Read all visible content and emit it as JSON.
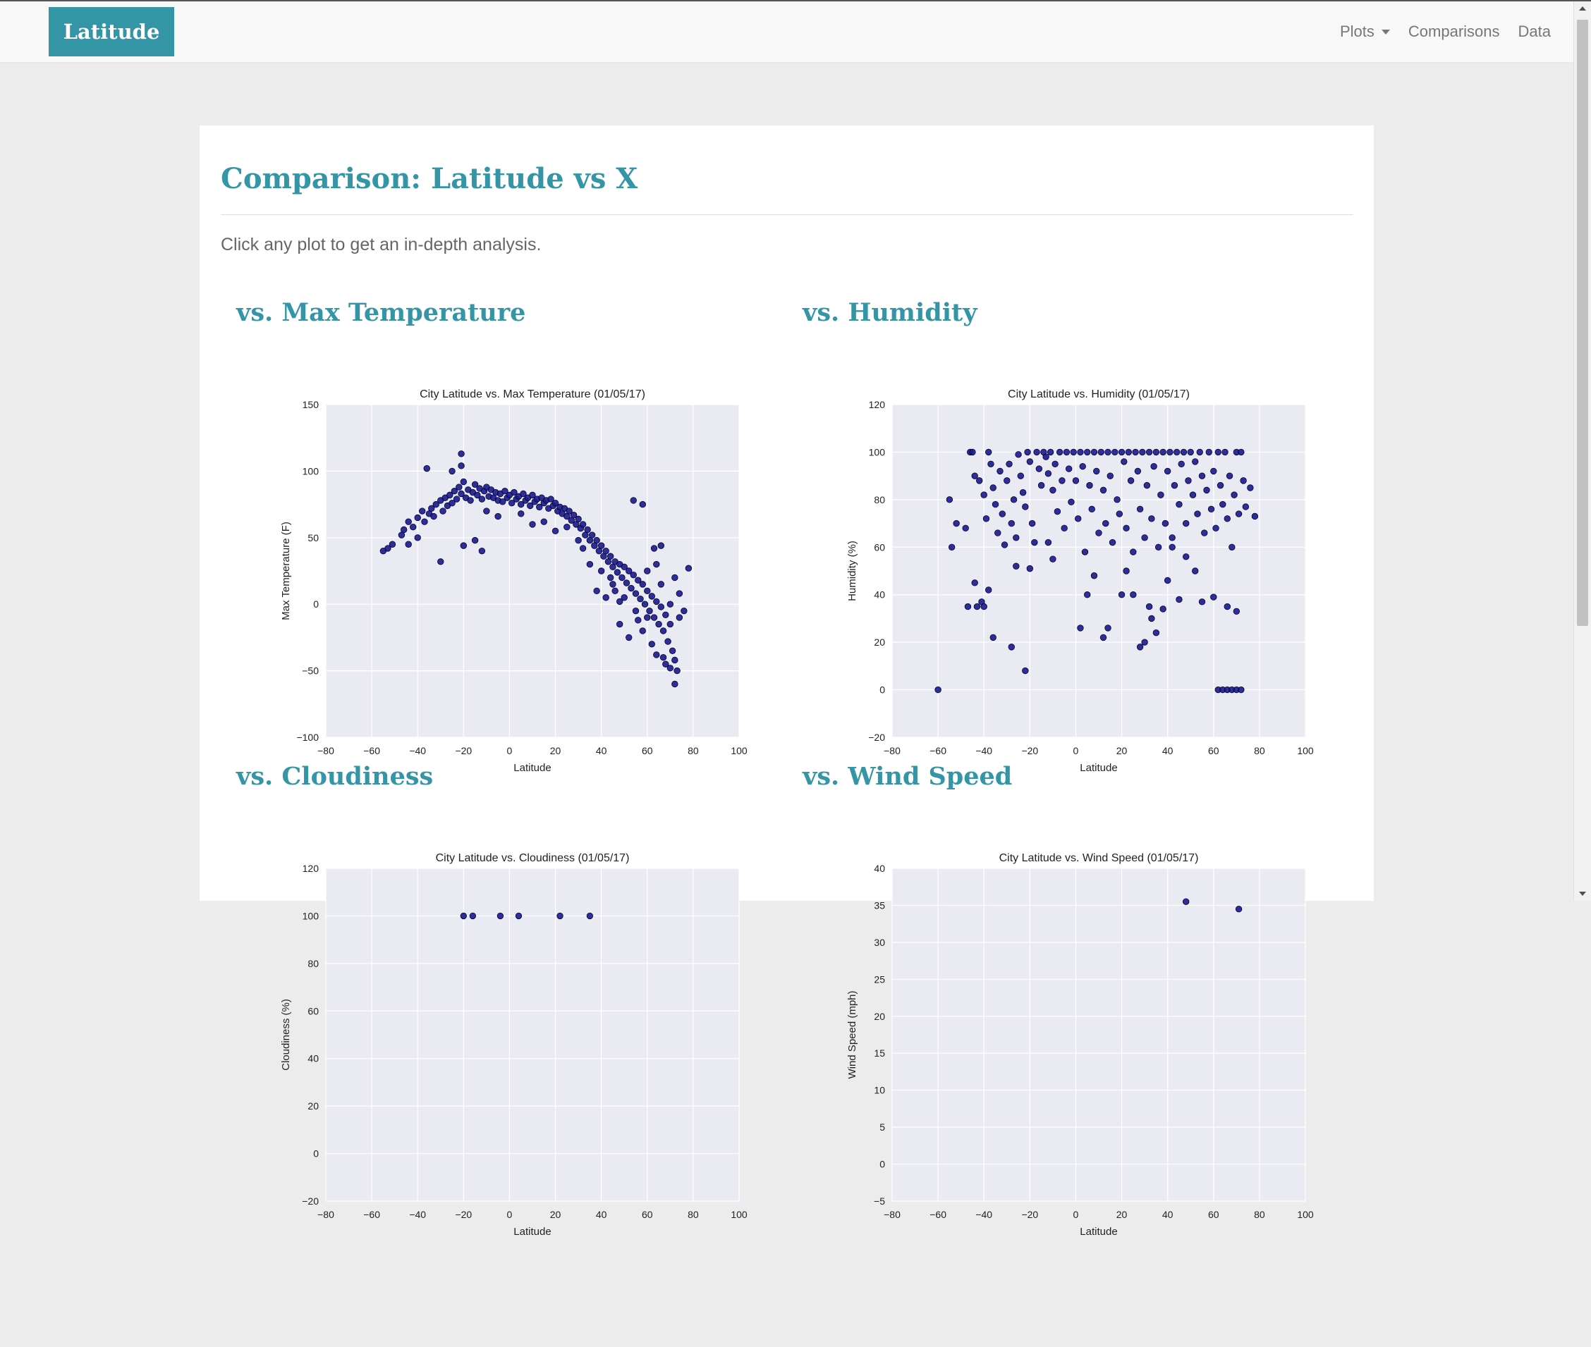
{
  "navbar": {
    "brand": "Latitude",
    "links": [
      {
        "label": "Plots",
        "dropdown": true
      },
      {
        "label": "Comparisons"
      },
      {
        "label": "Data"
      }
    ]
  },
  "page": {
    "title": "Comparison: Latitude vs X",
    "subtitle": "Click any plot to get an in-depth analysis."
  },
  "sections": {
    "temp": "vs. Max Temperature",
    "humidity": "vs. Humidity",
    "cloudiness": "vs. Cloudiness",
    "wind": "vs. Wind Speed"
  },
  "colors": {
    "accent": "#3395a5",
    "plot_bg": "#eaeaf2",
    "grid": "#ffffff",
    "marker": "#1a1a8c",
    "marker_edge": "#000033"
  },
  "chart_data": [
    {
      "id": "temp",
      "type": "scatter",
      "title": "City Latitude vs. Max Temperature (01/05/17)",
      "xlabel": "Latitude",
      "ylabel": "Max Temperature (F)",
      "xlim": [
        -80,
        100
      ],
      "ylim": [
        -100,
        150
      ],
      "xticks": [
        -80,
        -60,
        -40,
        -20,
        0,
        20,
        40,
        60,
        80,
        100
      ],
      "yticks": [
        -100,
        -50,
        0,
        50,
        100,
        150
      ],
      "points": [
        [
          -55,
          40
        ],
        [
          -53,
          42
        ],
        [
          -51,
          45
        ],
        [
          -47,
          52
        ],
        [
          -46,
          56
        ],
        [
          -44,
          62
        ],
        [
          -42,
          58
        ],
        [
          -40,
          65
        ],
        [
          -38,
          70
        ],
        [
          -37,
          62
        ],
        [
          -35,
          68
        ],
        [
          -34,
          72
        ],
        [
          -33,
          66
        ],
        [
          -32,
          75
        ],
        [
          -30,
          78
        ],
        [
          -29,
          70
        ],
        [
          -28,
          80
        ],
        [
          -27,
          74
        ],
        [
          -26,
          82
        ],
        [
          -25,
          76
        ],
        [
          -24,
          85
        ],
        [
          -23,
          79
        ],
        [
          -22,
          88
        ],
        [
          -21,
          83
        ],
        [
          -20,
          92
        ],
        [
          -19,
          80
        ],
        [
          -18,
          86
        ],
        [
          -17,
          78
        ],
        [
          -16,
          84
        ],
        [
          -15,
          90
        ],
        [
          -14,
          82
        ],
        [
          -13,
          87
        ],
        [
          -12,
          79
        ],
        [
          -11,
          85
        ],
        [
          -10,
          88
        ],
        [
          -9,
          81
        ],
        [
          -8,
          86
        ],
        [
          -7,
          80
        ],
        [
          -6,
          84
        ],
        [
          -5,
          78
        ],
        [
          -4,
          83
        ],
        [
          -3,
          77
        ],
        [
          -2,
          85
        ],
        [
          -1,
          80
        ],
        [
          0,
          82
        ],
        [
          1,
          76
        ],
        [
          2,
          84
        ],
        [
          3,
          79
        ],
        [
          4,
          81
        ],
        [
          5,
          75
        ],
        [
          6,
          83
        ],
        [
          7,
          78
        ],
        [
          8,
          80
        ],
        [
          9,
          74
        ],
        [
          10,
          82
        ],
        [
          11,
          77
        ],
        [
          12,
          79
        ],
        [
          13,
          73
        ],
        [
          14,
          80
        ],
        [
          15,
          76
        ],
        [
          16,
          78
        ],
        [
          17,
          72
        ],
        [
          18,
          79
        ],
        [
          19,
          74
        ],
        [
          20,
          76
        ],
        [
          21,
          70
        ],
        [
          22,
          73
        ],
        [
          23,
          68
        ],
        [
          24,
          72
        ],
        [
          25,
          66
        ],
        [
          26,
          70
        ],
        [
          27,
          63
        ],
        [
          28,
          67
        ],
        [
          29,
          60
        ],
        [
          30,
          64
        ],
        [
          31,
          57
        ],
        [
          32,
          60
        ],
        [
          33,
          52
        ],
        [
          34,
          56
        ],
        [
          35,
          48
        ],
        [
          36,
          52
        ],
        [
          37,
          44
        ],
        [
          38,
          48
        ],
        [
          39,
          40
        ],
        [
          40,
          44
        ],
        [
          41,
          36
        ],
        [
          42,
          40
        ],
        [
          43,
          32
        ],
        [
          44,
          36
        ],
        [
          45,
          28
        ],
        [
          46,
          32
        ],
        [
          47,
          24
        ],
        [
          48,
          30
        ],
        [
          49,
          20
        ],
        [
          50,
          28
        ],
        [
          51,
          16
        ],
        [
          52,
          25
        ],
        [
          53,
          12
        ],
        [
          54,
          22
        ],
        [
          55,
          8
        ],
        [
          56,
          18
        ],
        [
          57,
          4
        ],
        [
          58,
          15
        ],
        [
          59,
          0
        ],
        [
          60,
          10
        ],
        [
          61,
          -5
        ],
        [
          62,
          6
        ],
        [
          63,
          -10
        ],
        [
          64,
          2
        ],
        [
          65,
          -15
        ],
        [
          66,
          -2
        ],
        [
          67,
          -20
        ],
        [
          68,
          -8
        ],
        [
          69,
          -28
        ],
        [
          70,
          -15
        ],
        [
          71,
          -35
        ],
        [
          72,
          -42
        ],
        [
          73,
          -50
        ],
        [
          72,
          -60
        ],
        [
          70,
          -48
        ],
        [
          67,
          -40
        ],
        [
          -30,
          32
        ],
        [
          -20,
          44
        ],
        [
          -12,
          40
        ],
        [
          -36,
          102
        ],
        [
          -25,
          100
        ],
        [
          -21,
          104
        ],
        [
          -21,
          113
        ],
        [
          54,
          78
        ],
        [
          58,
          75
        ],
        [
          63,
          42
        ],
        [
          66,
          44
        ],
        [
          78,
          27
        ],
        [
          76,
          -5
        ],
        [
          74,
          8
        ],
        [
          48,
          -15
        ],
        [
          52,
          -25
        ],
        [
          42,
          5
        ],
        [
          38,
          10
        ],
        [
          -44,
          45
        ],
        [
          -40,
          50
        ],
        [
          -15,
          48
        ],
        [
          15,
          62
        ],
        [
          20,
          55
        ],
        [
          30,
          48
        ],
        [
          35,
          30
        ],
        [
          40,
          25
        ],
        [
          45,
          15
        ],
        [
          50,
          5
        ],
        [
          55,
          -5
        ],
        [
          60,
          -10
        ],
        [
          62,
          -30
        ],
        [
          64,
          -38
        ],
        [
          68,
          -45
        ],
        [
          -10,
          70
        ],
        [
          -5,
          66
        ],
        [
          5,
          68
        ],
        [
          10,
          60
        ],
        [
          25,
          58
        ],
        [
          32,
          42
        ],
        [
          44,
          20
        ],
        [
          46,
          10
        ],
        [
          48,
          2
        ],
        [
          56,
          -12
        ],
        [
          58,
          -20
        ],
        [
          60,
          25
        ],
        [
          64,
          30
        ],
        [
          66,
          15
        ],
        [
          70,
          0
        ],
        [
          72,
          20
        ],
        [
          74,
          -10
        ]
      ]
    },
    {
      "id": "humidity",
      "type": "scatter",
      "title": "City Latitude vs. Humidity (01/05/17)",
      "xlabel": "Latitude",
      "ylabel": "Humidity (%)",
      "xlim": [
        -80,
        100
      ],
      "ylim": [
        -20,
        120
      ],
      "xticks": [
        -80,
        -60,
        -40,
        -20,
        0,
        20,
        40,
        60,
        80,
        100
      ],
      "yticks": [
        -20,
        0,
        20,
        40,
        60,
        80,
        100,
        120
      ],
      "points": [
        [
          -55,
          80
        ],
        [
          -54,
          60
        ],
        [
          -52,
          70
        ],
        [
          -48,
          68
        ],
        [
          -46,
          100
        ],
        [
          -45,
          100
        ],
        [
          -44,
          90
        ],
        [
          -42,
          88
        ],
        [
          -40,
          82
        ],
        [
          -39,
          72
        ],
        [
          -38,
          100
        ],
        [
          -37,
          95
        ],
        [
          -36,
          85
        ],
        [
          -35,
          78
        ],
        [
          -34,
          66
        ],
        [
          -33,
          92
        ],
        [
          -32,
          74
        ],
        [
          -31,
          61
        ],
        [
          -30,
          88
        ],
        [
          -29,
          95
        ],
        [
          -28,
          70
        ],
        [
          -27,
          80
        ],
        [
          -26,
          64
        ],
        [
          -25,
          99
        ],
        [
          -24,
          90
        ],
        [
          -23,
          83
        ],
        [
          -22,
          77
        ],
        [
          -21,
          100
        ],
        [
          -20,
          96
        ],
        [
          -19,
          70
        ],
        [
          -18,
          62
        ],
        [
          -17,
          100
        ],
        [
          -16,
          93
        ],
        [
          -15,
          86
        ],
        [
          -14,
          100
        ],
        [
          -13,
          98
        ],
        [
          -12,
          91
        ],
        [
          -11,
          100
        ],
        [
          -10,
          84
        ],
        [
          -9,
          95
        ],
        [
          -8,
          75
        ],
        [
          -7,
          100
        ],
        [
          -6,
          88
        ],
        [
          -5,
          68
        ],
        [
          -4,
          100
        ],
        [
          -3,
          93
        ],
        [
          -2,
          79
        ],
        [
          -1,
          100
        ],
        [
          0,
          88
        ],
        [
          1,
          72
        ],
        [
          2,
          100
        ],
        [
          3,
          94
        ],
        [
          4,
          58
        ],
        [
          5,
          100
        ],
        [
          6,
          86
        ],
        [
          7,
          76
        ],
        [
          8,
          100
        ],
        [
          9,
          92
        ],
        [
          10,
          66
        ],
        [
          11,
          100
        ],
        [
          12,
          84
        ],
        [
          13,
          70
        ],
        [
          14,
          100
        ],
        [
          15,
          90
        ],
        [
          16,
          62
        ],
        [
          17,
          100
        ],
        [
          18,
          80
        ],
        [
          19,
          74
        ],
        [
          20,
          100
        ],
        [
          21,
          96
        ],
        [
          22,
          68
        ],
        [
          23,
          100
        ],
        [
          24,
          88
        ],
        [
          25,
          58
        ],
        [
          26,
          100
        ],
        [
          27,
          92
        ],
        [
          28,
          76
        ],
        [
          29,
          100
        ],
        [
          30,
          64
        ],
        [
          31,
          86
        ],
        [
          32,
          100
        ],
        [
          33,
          72
        ],
        [
          34,
          94
        ],
        [
          35,
          100
        ],
        [
          36,
          60
        ],
        [
          37,
          82
        ],
        [
          38,
          100
        ],
        [
          39,
          70
        ],
        [
          40,
          92
        ],
        [
          41,
          100
        ],
        [
          42,
          64
        ],
        [
          43,
          86
        ],
        [
          44,
          100
        ],
        [
          45,
          78
        ],
        [
          46,
          95
        ],
        [
          47,
          100
        ],
        [
          48,
          70
        ],
        [
          49,
          88
        ],
        [
          50,
          100
        ],
        [
          51,
          82
        ],
        [
          52,
          96
        ],
        [
          53,
          74
        ],
        [
          54,
          100
        ],
        [
          55,
          90
        ],
        [
          56,
          66
        ],
        [
          57,
          84
        ],
        [
          58,
          100
        ],
        [
          59,
          76
        ],
        [
          60,
          92
        ],
        [
          61,
          68
        ],
        [
          62,
          100
        ],
        [
          63,
          86
        ],
        [
          64,
          78
        ],
        [
          65,
          100
        ],
        [
          66,
          72
        ],
        [
          67,
          90
        ],
        [
          68,
          60
        ],
        [
          69,
          82
        ],
        [
          70,
          100
        ],
        [
          71,
          74
        ],
        [
          72,
          100
        ],
        [
          73,
          88
        ],
        [
          74,
          77
        ],
        [
          76,
          85
        ],
        [
          78,
          73
        ],
        [
          -60,
          0
        ],
        [
          -47,
          35
        ],
        [
          -44,
          45
        ],
        [
          -41,
          37
        ],
        [
          -38,
          42
        ],
        [
          -36,
          22
        ],
        [
          -28,
          18
        ],
        [
          -22,
          8
        ],
        [
          -20,
          51
        ],
        [
          -10,
          55
        ],
        [
          2,
          26
        ],
        [
          5,
          40
        ],
        [
          8,
          48
        ],
        [
          12,
          22
        ],
        [
          14,
          26
        ],
        [
          20,
          40
        ],
        [
          22,
          50
        ],
        [
          28,
          18
        ],
        [
          30,
          20
        ],
        [
          32,
          35
        ],
        [
          35,
          24
        ],
        [
          38,
          34
        ],
        [
          40,
          46
        ],
        [
          45,
          38
        ],
        [
          55,
          37
        ],
        [
          60,
          39
        ],
        [
          62,
          0
        ],
        [
          64,
          0
        ],
        [
          66,
          0
        ],
        [
          68,
          0
        ],
        [
          70,
          0
        ],
        [
          72,
          0
        ],
        [
          66,
          35
        ],
        [
          70,
          33
        ],
        [
          -12,
          62
        ],
        [
          -26,
          52
        ],
        [
          48,
          56
        ],
        [
          52,
          50
        ],
        [
          -40,
          35
        ],
        [
          -43,
          35
        ],
        [
          25,
          40
        ],
        [
          33,
          30
        ],
        [
          42,
          60
        ]
      ]
    },
    {
      "id": "cloudiness",
      "type": "scatter",
      "title": "City Latitude vs. Cloudiness (01/05/17)",
      "xlabel": "Latitude",
      "ylabel": "Cloudiness (%)",
      "xlim": [
        -80,
        100
      ],
      "ylim": [
        -20,
        120
      ],
      "xticks": [
        -80,
        -60,
        -40,
        -20,
        0,
        20,
        40,
        60,
        80,
        100
      ],
      "yticks": [
        -20,
        0,
        20,
        40,
        60,
        80,
        100,
        120
      ],
      "points": [
        [
          -20,
          100
        ],
        [
          -16,
          100
        ],
        [
          -4,
          100
        ],
        [
          4,
          100
        ],
        [
          22,
          100
        ],
        [
          35,
          100
        ]
      ]
    },
    {
      "id": "wind",
      "type": "scatter",
      "title": "City Latitude vs. Wind Speed (01/05/17)",
      "xlabel": "Latitude",
      "ylabel": "Wind Speed (mph)",
      "xlim": [
        -80,
        100
      ],
      "ylim": [
        -5,
        40
      ],
      "xticks": [
        -80,
        -60,
        -40,
        -20,
        0,
        20,
        40,
        60,
        80,
        100
      ],
      "yticks": [
        -5,
        0,
        5,
        10,
        15,
        20,
        25,
        30,
        35,
        40
      ],
      "points": [
        [
          48,
          35.5
        ],
        [
          71,
          34.5
        ]
      ]
    }
  ]
}
